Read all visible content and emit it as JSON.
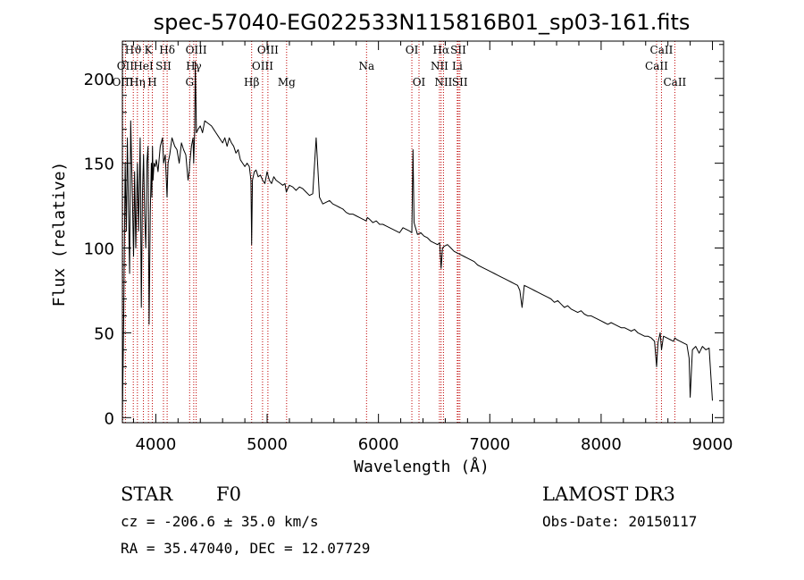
{
  "chart_data": {
    "type": "line",
    "title": "spec-57040-EG022533N115816B01_sp03-161.fits",
    "xlabel": "Wavelength (Å)",
    "ylabel": "Flux (relative)",
    "xlim": [
      3700,
      9100
    ],
    "ylim": [
      -3,
      222
    ],
    "x_ticks": [
      4000,
      5000,
      6000,
      7000,
      8000,
      9000
    ],
    "y_ticks": [
      0,
      50,
      100,
      150,
      200
    ],
    "series": [
      {
        "name": "spectrum",
        "x": [
          3700,
          3712,
          3725,
          3735,
          3745,
          3755,
          3765,
          3775,
          3790,
          3800,
          3810,
          3820,
          3835,
          3845,
          3860,
          3870,
          3880,
          3890,
          3900,
          3910,
          3920,
          3930,
          3940,
          3950,
          3960,
          3965,
          3970,
          3975,
          3985,
          3995,
          4005,
          4020,
          4040,
          4060,
          4070,
          4085,
          4095,
          4101,
          4110,
          4125,
          4145,
          4170,
          4190,
          4210,
          4230,
          4250,
          4270,
          4290,
          4300,
          4305,
          4320,
          4335,
          4340,
          4350,
          4355,
          4365,
          4380,
          4400,
          4420,
          4440,
          4460,
          4480,
          4500,
          4520,
          4540,
          4560,
          4580,
          4600,
          4620,
          4640,
          4660,
          4680,
          4700,
          4720,
          4740,
          4760,
          4780,
          4800,
          4820,
          4840,
          4855,
          4861,
          4868,
          4885,
          4900,
          4920,
          4940,
          4960,
          4980,
          5000,
          5020,
          5040,
          5060,
          5080,
          5100,
          5120,
          5140,
          5160,
          5172,
          5185,
          5200,
          5230,
          5260,
          5290,
          5320,
          5350,
          5380,
          5410,
          5440,
          5470,
          5500,
          5530,
          5560,
          5590,
          5620,
          5650,
          5680,
          5710,
          5740,
          5770,
          5800,
          5830,
          5860,
          5890,
          5900,
          5920,
          5950,
          5980,
          6010,
          6040,
          6070,
          6100,
          6130,
          6160,
          6190,
          6220,
          6250,
          6280,
          6300,
          6310,
          6320,
          6350,
          6380,
          6410,
          6440,
          6470,
          6500,
          6530,
          6550,
          6563,
          6575,
          6590,
          6620,
          6650,
          6680,
          6710,
          6740,
          6770,
          6800,
          6830,
          6860,
          6890,
          6920,
          6950,
          6980,
          7010,
          7040,
          7070,
          7100,
          7130,
          7160,
          7190,
          7220,
          7250,
          7270,
          7290,
          7310,
          7340,
          7370,
          7400,
          7430,
          7460,
          7490,
          7520,
          7550,
          7580,
          7610,
          7640,
          7670,
          7700,
          7730,
          7760,
          7790,
          7820,
          7850,
          7880,
          7910,
          7940,
          7970,
          8000,
          8030,
          8060,
          8090,
          8120,
          8150,
          8180,
          8210,
          8240,
          8270,
          8300,
          8330,
          8360,
          8390,
          8420,
          8450,
          8480,
          8498,
          8510,
          8530,
          8542,
          8560,
          8590,
          8620,
          8650,
          8662,
          8680,
          8710,
          8740,
          8770,
          8790,
          8800,
          8820,
          8850,
          8880,
          8910,
          8940,
          8970,
          9000
        ],
        "y": [
          0,
          60,
          150,
          110,
          165,
          120,
          85,
          175,
          130,
          95,
          145,
          100,
          150,
          110,
          165,
          65,
          130,
          155,
          120,
          100,
          150,
          160,
          55,
          120,
          150,
          130,
          160,
          140,
          150,
          148,
          152,
          145,
          160,
          165,
          150,
          155,
          140,
          130,
          150,
          155,
          165,
          160,
          158,
          150,
          162,
          158,
          155,
          140,
          145,
          150,
          160,
          165,
          150,
          170,
          210,
          168,
          170,
          172,
          168,
          175,
          174,
          173,
          172,
          170,
          168,
          166,
          164,
          162,
          165,
          160,
          165,
          162,
          160,
          156,
          158,
          152,
          150,
          148,
          150,
          148,
          140,
          102,
          140,
          145,
          146,
          142,
          143,
          140,
          138,
          145,
          140,
          138,
          142,
          140,
          139,
          138,
          137,
          138,
          133,
          135,
          137,
          136,
          134,
          136,
          135,
          133,
          131,
          132,
          165,
          130,
          126,
          127,
          128,
          126,
          125,
          124,
          123,
          121,
          120,
          120,
          119,
          118,
          117,
          116,
          118,
          117,
          115,
          116,
          114,
          114,
          113,
          112,
          111,
          110,
          109,
          112,
          111,
          110,
          109,
          158,
          115,
          108,
          109,
          107,
          106,
          104,
          103,
          102,
          103,
          88,
          100,
          101,
          102,
          100,
          98,
          97,
          96,
          95,
          94,
          93,
          92,
          90,
          89,
          88,
          87,
          86,
          85,
          84,
          83,
          82,
          81,
          80,
          79,
          78,
          75,
          65,
          78,
          77,
          76,
          75,
          74,
          73,
          72,
          71,
          70,
          68,
          69,
          67,
          65,
          66,
          64,
          63,
          62,
          63,
          61,
          60,
          60,
          59,
          58,
          57,
          56,
          55,
          56,
          55,
          54,
          53,
          53,
          52,
          51,
          52,
          50,
          49,
          48,
          48,
          47,
          45,
          30,
          44,
          50,
          40,
          48,
          47,
          46,
          45,
          47,
          46,
          45,
          44,
          43,
          35,
          12,
          40,
          42,
          38,
          42,
          40,
          41,
          10
        ]
      }
    ],
    "line_markers": [
      {
        "label": "Hϑ",
        "x": 3798,
        "row": 0
      },
      {
        "label": "OII",
        "x": 3727,
        "row": 1
      },
      {
        "label": "OIII",
        "x": 3704,
        "row": 2
      },
      {
        "label": "K",
        "x": 3934,
        "row": 0
      },
      {
        "label": "HeI",
        "x": 3889,
        "row": 1
      },
      {
        "label": "Hη",
        "x": 3835,
        "row": 2
      },
      {
        "label": "H",
        "x": 3969,
        "row": 2
      },
      {
        "label": "SII",
        "x": 4069,
        "row": 1
      },
      {
        "label": "Hδ",
        "x": 4102,
        "row": 0
      },
      {
        "label": "OIII",
        "x": 4363,
        "row": 0
      },
      {
        "label": "Hγ",
        "x": 4341,
        "row": 1
      },
      {
        "label": "G",
        "x": 4304,
        "row": 2
      },
      {
        "label": "Hβ",
        "x": 4861,
        "row": 2
      },
      {
        "label": "OIII",
        "x": 5007,
        "row": 0
      },
      {
        "label": "OIII",
        "x": 4959,
        "row": 1
      },
      {
        "label": "Mg",
        "x": 5175,
        "row": 2
      },
      {
        "label": "Na",
        "x": 5893,
        "row": 1
      },
      {
        "label": "OI",
        "x": 6300,
        "row": 0
      },
      {
        "label": "OI",
        "x": 6364,
        "row": 2
      },
      {
        "label": "Hα",
        "x": 6563,
        "row": 0
      },
      {
        "label": "NII",
        "x": 6548,
        "row": 1
      },
      {
        "label": "NII",
        "x": 6584,
        "row": 2
      },
      {
        "label": "SII",
        "x": 6717,
        "row": 0
      },
      {
        "label": "Li",
        "x": 6708,
        "row": 1
      },
      {
        "label": "SII",
        "x": 6731,
        "row": 2
      },
      {
        "label": "CaII",
        "x": 8542,
        "row": 0
      },
      {
        "label": "CaII",
        "x": 8498,
        "row": 1
      },
      {
        "label": "CaII",
        "x": 8662,
        "row": 2
      }
    ],
    "grid": false,
    "marker_color": "#c00000",
    "line_color": "#000000"
  },
  "info": {
    "object_class": "STAR",
    "subclass": "F0",
    "survey": "LAMOST DR3",
    "cz": "cz = -206.6 ± 35.0 km/s",
    "obs_date": "Obs-Date: 20150117",
    "coords": "RA =  35.47040, DEC =  12.07729"
  }
}
